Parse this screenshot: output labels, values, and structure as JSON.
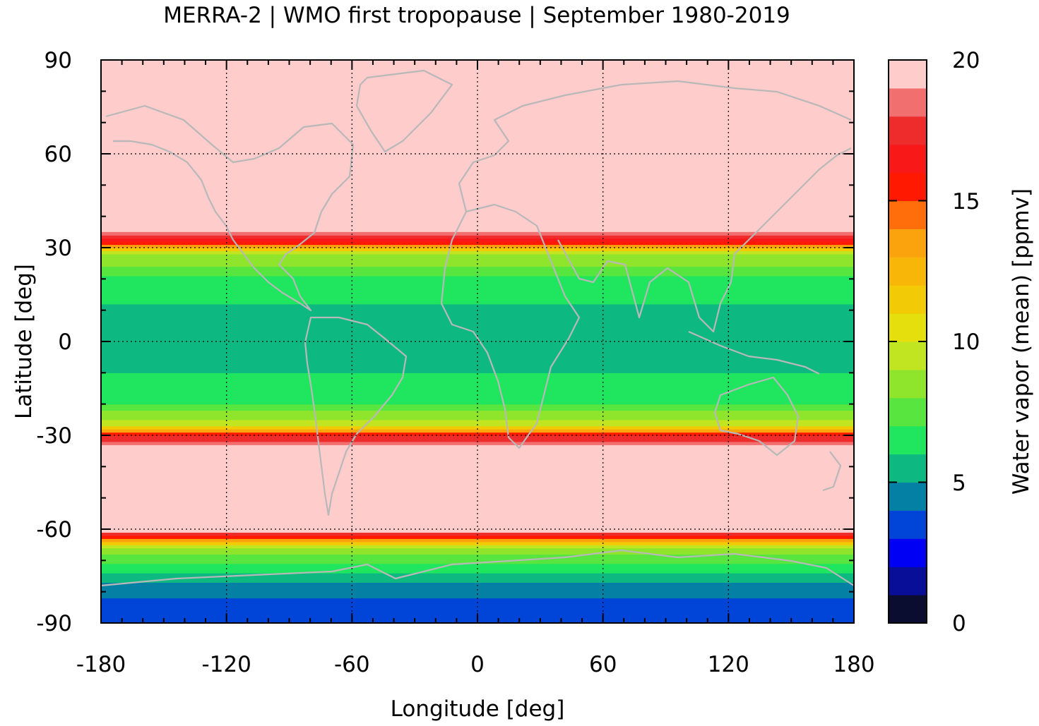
{
  "chart_data": {
    "type": "heatmap",
    "title": "MERRA-2 | WMO first tropopause | September 1980-2019",
    "xlabel": "Longitude [deg]",
    "ylabel": "Latitude [deg]",
    "xlim": [
      -180,
      180
    ],
    "ylim": [
      -90,
      90
    ],
    "x_ticks": [
      -180,
      -120,
      -60,
      0,
      60,
      120,
      180
    ],
    "y_ticks": [
      90,
      60,
      30,
      0,
      -30,
      -60,
      -90
    ],
    "x_tick_labels": [
      "-180",
      "-120",
      "-60",
      "0",
      "60",
      "120",
      "180"
    ],
    "y_tick_labels": [
      "90",
      "60",
      "30",
      "0",
      "-30",
      "-60",
      "-90"
    ],
    "grid": true,
    "colorbar": {
      "label": "Water vapor (mean) [ppmv]",
      "range": [
        0,
        20
      ],
      "ticks": [
        0,
        5,
        10,
        15,
        20
      ],
      "tick_labels": [
        "0",
        "5",
        "10",
        "15",
        "20"
      ],
      "levels": [
        0,
        1,
        2,
        3,
        4,
        5,
        6,
        7,
        8,
        9,
        10,
        11,
        12,
        13,
        14,
        15,
        16,
        17,
        18,
        19,
        20
      ],
      "colors": [
        "#0b0d30",
        "#080e98",
        "#0000f5",
        "#0044d8",
        "#0480a4",
        "#0db981",
        "#20e55e",
        "#58e53f",
        "#8ee52c",
        "#c2e521",
        "#e5df0e",
        "#f2ca06",
        "#f7b608",
        "#fba30d",
        "#ff6e0a",
        "#ff1900",
        "#f91818",
        "#ee2c2c",
        "#f26f6f",
        "#ffcccc"
      ]
    },
    "zonal_profile": {
      "note_lat": [
        -90,
        -84,
        -78,
        -72,
        -66,
        -63,
        -60,
        -55,
        -45,
        -35,
        -30,
        -27,
        -20,
        -10,
        0,
        10,
        20,
        28,
        32,
        36,
        45,
        60,
        90
      ],
      "values": [
        3.6,
        3.8,
        4.5,
        6.5,
        9.0,
        14.0,
        20,
        20,
        20,
        20,
        17.0,
        10.0,
        7.0,
        6.0,
        5.5,
        5.8,
        6.8,
        9.0,
        16.0,
        20,
        20,
        20,
        20
      ]
    }
  }
}
